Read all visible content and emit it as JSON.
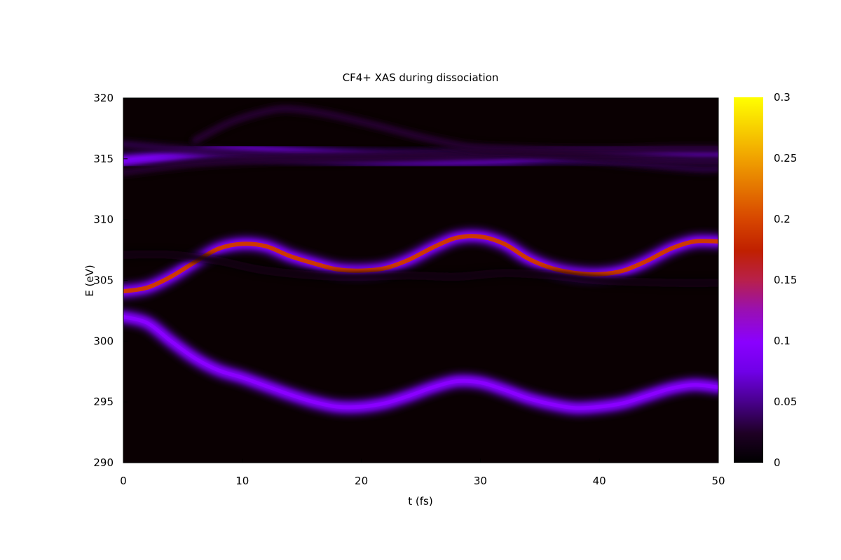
{
  "chart_data": {
    "type": "heatmap",
    "title": "CF4+ XAS during dissociation",
    "xlabel": "t (fs)",
    "ylabel": "E (eV)",
    "xlim": [
      0,
      50
    ],
    "ylim": [
      290,
      320
    ],
    "x_ticks": [
      "0",
      "10",
      "20",
      "30",
      "40",
      "50"
    ],
    "y_ticks": [
      "290",
      "295",
      "300",
      "305",
      "310",
      "315",
      "320"
    ],
    "colorbar": {
      "range": [
        0,
        0.3
      ],
      "ticks": [
        "0",
        "0.05",
        "0.1",
        "0.15",
        "0.2",
        "0.25",
        "0.3"
      ],
      "colormap": [
        "#000000",
        "#2a0030",
        "#6000c0",
        "#8a00ff",
        "#b01a60",
        "#bf2000",
        "#e05a00",
        "#f0a000",
        "#ffff00"
      ]
    },
    "series": [
      {
        "intensity": 0.19,
        "points": [
          [
            0,
            304.1
          ],
          [
            2,
            304.4
          ],
          [
            4,
            305.3
          ],
          [
            6,
            306.5
          ],
          [
            8,
            307.6
          ],
          [
            10,
            308.0
          ],
          [
            12,
            307.8
          ],
          [
            14,
            307.0
          ],
          [
            16,
            306.4
          ],
          [
            18,
            305.9
          ],
          [
            20,
            305.8
          ],
          [
            22,
            306.0
          ],
          [
            24,
            306.7
          ],
          [
            26,
            307.7
          ],
          [
            28,
            308.5
          ],
          [
            30,
            308.6
          ],
          [
            32,
            308.0
          ],
          [
            34,
            306.8
          ],
          [
            36,
            306.0
          ],
          [
            38,
            305.6
          ],
          [
            40,
            305.5
          ],
          [
            42,
            305.8
          ],
          [
            44,
            306.6
          ],
          [
            46,
            307.6
          ],
          [
            48,
            308.2
          ],
          [
            50,
            308.2
          ]
        ]
      },
      {
        "intensity": 0.1,
        "points": [
          [
            0,
            302.0
          ],
          [
            2,
            301.5
          ],
          [
            4,
            300.0
          ],
          [
            6,
            298.6
          ],
          [
            8,
            297.6
          ],
          [
            10,
            297.0
          ],
          [
            12,
            296.3
          ],
          [
            14,
            295.6
          ],
          [
            16,
            295.0
          ],
          [
            18,
            294.6
          ],
          [
            20,
            294.6
          ],
          [
            22,
            294.9
          ],
          [
            24,
            295.5
          ],
          [
            26,
            296.2
          ],
          [
            28,
            296.7
          ],
          [
            30,
            296.6
          ],
          [
            32,
            296.0
          ],
          [
            34,
            295.3
          ],
          [
            36,
            294.8
          ],
          [
            38,
            294.5
          ],
          [
            40,
            294.6
          ],
          [
            42,
            294.9
          ],
          [
            44,
            295.5
          ],
          [
            46,
            296.1
          ],
          [
            48,
            296.4
          ],
          [
            50,
            296.2
          ]
        ]
      },
      {
        "intensity": 0.085,
        "points": [
          [
            0,
            314.8
          ],
          [
            4,
            315.2
          ],
          [
            8,
            315.6
          ],
          [
            12,
            315.5
          ],
          [
            16,
            315.3
          ],
          [
            20,
            315.1
          ],
          [
            24,
            315.0
          ],
          [
            28,
            315.0
          ],
          [
            32,
            315.1
          ],
          [
            36,
            315.3
          ],
          [
            40,
            315.3
          ],
          [
            44,
            315.3
          ],
          [
            48,
            315.3
          ],
          [
            50,
            315.3
          ]
        ]
      },
      {
        "intensity": 0.03,
        "points": [
          [
            0,
            316.2
          ],
          [
            6,
            315.7
          ],
          [
            12,
            315.3
          ],
          [
            18,
            315.2
          ],
          [
            24,
            315.3
          ],
          [
            30,
            315.6
          ],
          [
            36,
            315.3
          ],
          [
            42,
            314.7
          ],
          [
            48,
            314.2
          ],
          [
            50,
            314.2
          ]
        ]
      },
      {
        "intensity": 0.025,
        "points": [
          [
            0,
            313.9
          ],
          [
            6,
            314.6
          ],
          [
            12,
            314.9
          ],
          [
            18,
            315.0
          ],
          [
            24,
            315.1
          ],
          [
            30,
            315.2
          ],
          [
            36,
            315.4
          ],
          [
            42,
            315.1
          ],
          [
            48,
            314.9
          ],
          [
            50,
            314.9
          ]
        ]
      },
      {
        "intensity": 0.025,
        "points": [
          [
            6,
            316.5
          ],
          [
            9,
            318.0
          ],
          [
            12,
            318.9
          ],
          [
            14,
            319.1
          ],
          [
            17,
            318.7
          ],
          [
            21,
            317.8
          ],
          [
            25,
            316.8
          ],
          [
            29,
            316.0
          ],
          [
            33,
            315.8
          ],
          [
            37,
            315.7
          ],
          [
            42,
            315.7
          ],
          [
            46,
            315.8
          ],
          [
            50,
            315.8
          ]
        ]
      },
      {
        "intensity": 0.012,
        "points": [
          [
            0,
            307.1
          ],
          [
            4,
            307.1
          ],
          [
            8,
            306.6
          ],
          [
            12,
            305.8
          ],
          [
            18,
            305.3
          ],
          [
            24,
            305.4
          ],
          [
            28,
            305.3
          ],
          [
            32,
            305.6
          ],
          [
            36,
            305.4
          ],
          [
            40,
            305.0
          ],
          [
            46,
            304.8
          ],
          [
            50,
            304.8
          ]
        ]
      }
    ]
  }
}
